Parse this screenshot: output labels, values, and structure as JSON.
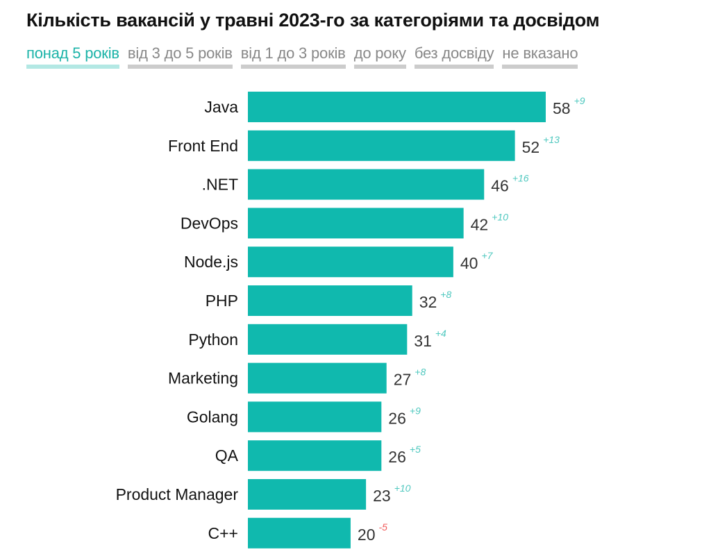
{
  "title": "Кількість вакансій у травні 2023-го за категоріями та досвідом",
  "tabs": [
    {
      "label": "понад 5 років",
      "active": true
    },
    {
      "label": "від 3 до 5 років",
      "active": false
    },
    {
      "label": "від 1 до 3 років",
      "active": false
    },
    {
      "label": "до року",
      "active": false
    },
    {
      "label": "без досвіду",
      "active": false
    },
    {
      "label": "не вказано",
      "active": false
    }
  ],
  "colors": {
    "bar": "#10b9ae",
    "delta_positive": "#4fc8bf",
    "delta_negative": "#f05a5a",
    "tab_active": "#1bb3a8",
    "tab_inactive": "#888888"
  },
  "chart_data": {
    "type": "bar",
    "orientation": "horizontal",
    "title": "Кількість вакансій у травні 2023-го за категоріями та досвідом",
    "series_name": "понад 5 років",
    "categories": [
      "Java",
      "Front End",
      ".NET",
      "DevOps",
      "Node.js",
      "PHP",
      "Python",
      "Marketing",
      "Golang",
      "QA",
      "Product Manager",
      "C++"
    ],
    "values": [
      58,
      52,
      46,
      42,
      40,
      32,
      31,
      27,
      26,
      26,
      23,
      20
    ],
    "deltas": [
      "+9",
      "+13",
      "+16",
      "+10",
      "+7",
      "+8",
      "+4",
      "+8",
      "+9",
      "+5",
      "+10",
      "-5"
    ],
    "xlabel": "",
    "ylabel": "",
    "xlim": [
      0,
      58
    ],
    "grid": false,
    "legend": "none"
  }
}
